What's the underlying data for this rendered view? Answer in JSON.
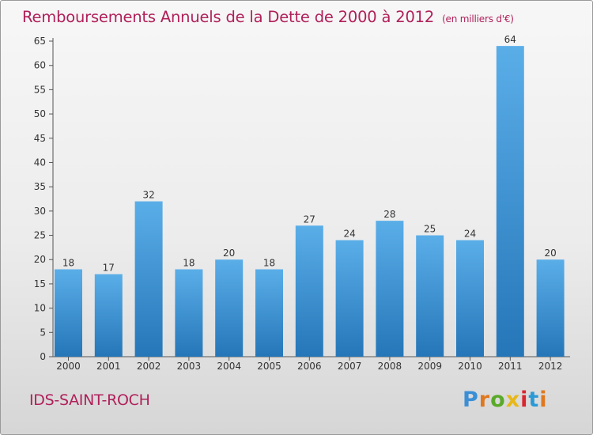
{
  "header": {
    "title": "Remboursements Annuels de la Dette de 2000 à 2012",
    "unit": "(en milliers d'€)"
  },
  "footer": {
    "city": "IDS-SAINT-ROCH",
    "logo": "Proxiti"
  },
  "colors": {
    "title": "#b0205a",
    "bar_top": "#5aaee8",
    "bar_bottom": "#2576b8",
    "logo_letters": [
      "#3b8fd6",
      "#e0781f",
      "#5aaa2a",
      "#e8b817",
      "#d9252f",
      "#2a9ad6",
      "#e0781f"
    ]
  },
  "chart_data": {
    "type": "bar",
    "categories": [
      "2000",
      "2001",
      "2002",
      "2003",
      "2004",
      "2005",
      "2006",
      "2007",
      "2008",
      "2009",
      "2010",
      "2011",
      "2012"
    ],
    "values": [
      18,
      17,
      32,
      18,
      20,
      18,
      27,
      24,
      28,
      25,
      24,
      64,
      20
    ],
    "title": "Remboursements Annuels de la Dette de 2000 à 2012",
    "ylim": [
      0,
      65
    ],
    "yticks": [
      0,
      5,
      10,
      15,
      20,
      25,
      30,
      35,
      40,
      45,
      50,
      55,
      60,
      65
    ],
    "grid": false,
    "data_labels": true
  }
}
